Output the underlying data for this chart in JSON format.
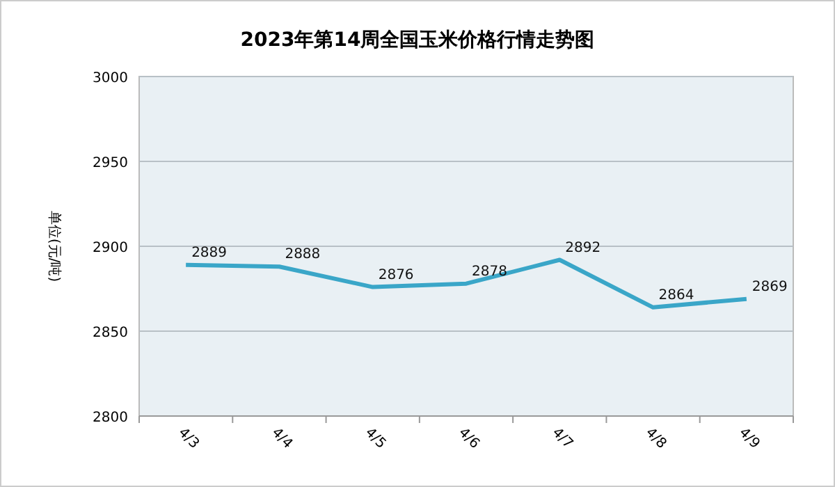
{
  "chart_data": {
    "type": "line",
    "title": "2023年第14周全国玉米价格行情走势图",
    "ylabel": "单位(元/吨)",
    "categories": [
      "4/3",
      "4/4",
      "4/5",
      "4/6",
      "4/7",
      "4/8",
      "4/9"
    ],
    "series": [
      {
        "color": "#3aa6c8",
        "values": [
          2889,
          2888,
          2876,
          2878,
          2892,
          2864,
          2869
        ]
      }
    ],
    "ylim": [
      2800,
      3000
    ],
    "yticks": [
      2800,
      2850,
      2900,
      2950,
      3000
    ],
    "grid": "y",
    "data_labels": true,
    "marker": "none",
    "line_style": "solid"
  }
}
